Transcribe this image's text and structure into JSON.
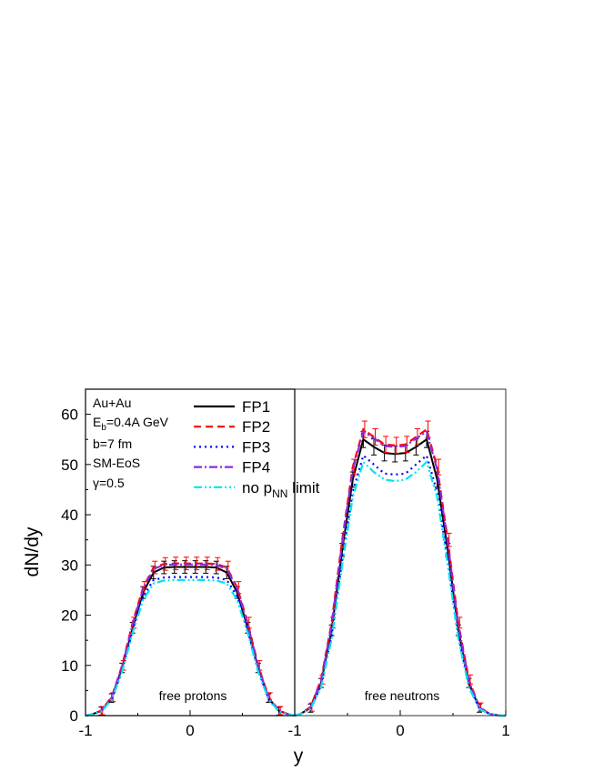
{
  "chart_data": [
    {
      "type": "line",
      "panel": "left",
      "label": "free protons",
      "x": [
        -0.95,
        -0.85,
        -0.75,
        -0.65,
        -0.55,
        -0.45,
        -0.35,
        -0.25,
        -0.15,
        -0.05,
        0.05,
        0.15,
        0.25,
        0.35,
        0.45,
        0.55,
        0.65,
        0.75,
        0.85,
        0.95
      ],
      "series": [
        {
          "name": "FP1",
          "values": [
            0.2,
            0.9,
            3.5,
            9.5,
            17.5,
            24.5,
            28.5,
            29.5,
            29.6,
            29.6,
            29.6,
            29.6,
            29.5,
            28.5,
            24.5,
            17.5,
            9.5,
            3.5,
            0.9,
            0.2
          ]
        },
        {
          "name": "FP2",
          "values": [
            0.2,
            1.0,
            3.7,
            10.0,
            18.5,
            25.5,
            29.5,
            30.2,
            30.3,
            30.3,
            30.3,
            30.3,
            30.2,
            29.5,
            25.5,
            18.5,
            10.0,
            3.7,
            1.0,
            0.2
          ]
        },
        {
          "name": "FP3",
          "values": [
            0.2,
            0.8,
            3.3,
            9.0,
            17.0,
            23.8,
            27.0,
            27.5,
            27.6,
            27.6,
            27.6,
            27.6,
            27.5,
            27.0,
            23.8,
            17.0,
            9.0,
            3.3,
            0.8,
            0.2
          ]
        },
        {
          "name": "FP4",
          "values": [
            0.2,
            0.9,
            3.6,
            9.8,
            18.2,
            25.2,
            29.2,
            30.0,
            30.1,
            30.1,
            30.1,
            30.1,
            30.0,
            29.2,
            25.2,
            18.2,
            9.8,
            3.6,
            0.9,
            0.2
          ]
        },
        {
          "name": "no p_NN limit",
          "values": [
            0.2,
            0.8,
            3.2,
            8.7,
            16.5,
            23.0,
            26.3,
            26.9,
            27.0,
            27.0,
            27.0,
            27.0,
            26.9,
            26.3,
            23.0,
            16.5,
            8.7,
            3.2,
            0.8,
            0.2
          ]
        }
      ]
    },
    {
      "type": "line",
      "panel": "right",
      "label": "free neutrons",
      "x": [
        -0.95,
        -0.85,
        -0.75,
        -0.65,
        -0.55,
        -0.45,
        -0.35,
        -0.25,
        -0.15,
        -0.05,
        0.05,
        0.15,
        0.25,
        0.35,
        0.45,
        0.55,
        0.65,
        0.75,
        0.85,
        0.95
      ],
      "series": [
        {
          "name": "FP1",
          "values": [
            0.3,
            1.5,
            6.5,
            17.0,
            33.0,
            47.0,
            55.0,
            53.5,
            52.3,
            52.1,
            52.3,
            53.5,
            55.0,
            47.0,
            33.0,
            17.0,
            6.5,
            1.5,
            0.3,
            0.0
          ]
        },
        {
          "name": "FP2",
          "values": [
            0.3,
            1.7,
            7.2,
            18.5,
            35.0,
            49.5,
            57.0,
            55.5,
            54.0,
            53.8,
            54.0,
            55.5,
            57.0,
            49.5,
            35.0,
            18.5,
            7.2,
            1.7,
            0.3,
            0.0
          ]
        },
        {
          "name": "FP3",
          "values": [
            0.3,
            1.4,
            6.0,
            16.0,
            31.0,
            44.5,
            51.8,
            50.0,
            48.2,
            48.0,
            48.2,
            50.0,
            51.8,
            44.5,
            31.0,
            16.0,
            6.0,
            1.4,
            0.3,
            0.0
          ]
        },
        {
          "name": "FP4",
          "values": [
            0.3,
            1.6,
            7.0,
            18.0,
            34.5,
            49.0,
            56.5,
            55.2,
            53.7,
            53.5,
            53.7,
            55.2,
            56.5,
            49.0,
            34.5,
            18.0,
            7.0,
            1.6,
            0.3,
            0.0
          ]
        },
        {
          "name": "no p_NN limit",
          "values": [
            0.3,
            1.3,
            5.7,
            15.3,
            30.0,
            43.5,
            50.5,
            48.5,
            47.0,
            46.7,
            47.0,
            48.5,
            50.5,
            43.5,
            30.0,
            15.3,
            5.7,
            1.3,
            0.3,
            0.0
          ]
        }
      ]
    }
  ],
  "axes": {
    "ylabel": "dN/dy",
    "xlabel": "y",
    "ylim": [
      0,
      65
    ],
    "yticks": [
      "0",
      "10",
      "20",
      "30",
      "40",
      "50",
      "60"
    ],
    "xlim": [
      -1,
      1
    ],
    "xticks_left": [
      "-1",
      "0"
    ],
    "xticks_right": [
      "-1",
      "0",
      "1"
    ]
  },
  "annotation": {
    "line1": "Au+Au",
    "line2_main": "E",
    "line2_sub": "b",
    "line2_rest": "=0.4A GeV",
    "line3": "b=7 fm",
    "line4": "SM-EoS",
    "line5": "γ=0.5"
  },
  "legend": {
    "entries": [
      "FP1",
      "FP2",
      "FP3",
      "FP4"
    ],
    "last_main": "no p",
    "last_sub": "NN",
    "last_rest": " limit"
  },
  "panel_labels": {
    "left": "free protons",
    "right": "free neutrons"
  },
  "styles": [
    {
      "color": "#000000",
      "dash": ""
    },
    {
      "color": "#ff0000",
      "dash": "8,5"
    },
    {
      "color": "#0000ff",
      "dash": "2,4"
    },
    {
      "color": "#8a2be2",
      "dash": "9,3,2,3"
    },
    {
      "color": "#00e5ee",
      "dash": "9,3,2,3,2,3"
    }
  ]
}
